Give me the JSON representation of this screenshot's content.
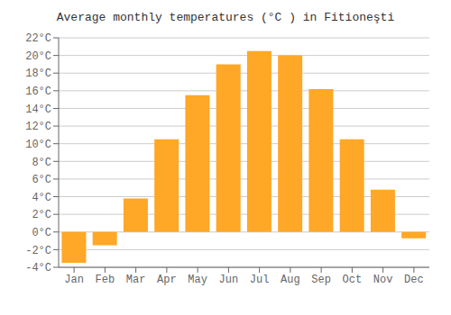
{
  "chart_data": {
    "type": "bar",
    "title": "Average monthly temperatures (°C ) in Fitioneşti",
    "categories": [
      "Jan",
      "Feb",
      "Mar",
      "Apr",
      "May",
      "Jun",
      "Jul",
      "Aug",
      "Sep",
      "Oct",
      "Nov",
      "Dec"
    ],
    "values": [
      -3.5,
      -1.5,
      3.8,
      10.5,
      15.5,
      19.0,
      20.5,
      20.0,
      16.2,
      10.5,
      4.8,
      -0.7
    ],
    "color": "#FFA726",
    "ylim": [
      -4,
      22
    ],
    "yticks": [
      {
        "value": -4,
        "label": "-4°C"
      },
      {
        "value": -2,
        "label": "-2°C"
      },
      {
        "value": 0,
        "label": "0°C"
      },
      {
        "value": 2,
        "label": "2°C"
      },
      {
        "value": 4,
        "label": "4°C"
      },
      {
        "value": 6,
        "label": "6°C"
      },
      {
        "value": 8,
        "label": "8°C"
      },
      {
        "value": 10,
        "label": "10°C"
      },
      {
        "value": 12,
        "label": "12°C"
      },
      {
        "value": 14,
        "label": "14°C"
      },
      {
        "value": 16,
        "label": "16°C"
      },
      {
        "value": 18,
        "label": "18°C"
      },
      {
        "value": 20,
        "label": "20°C"
      },
      {
        "value": 22,
        "label": "22°C"
      }
    ],
    "grid": true
  }
}
